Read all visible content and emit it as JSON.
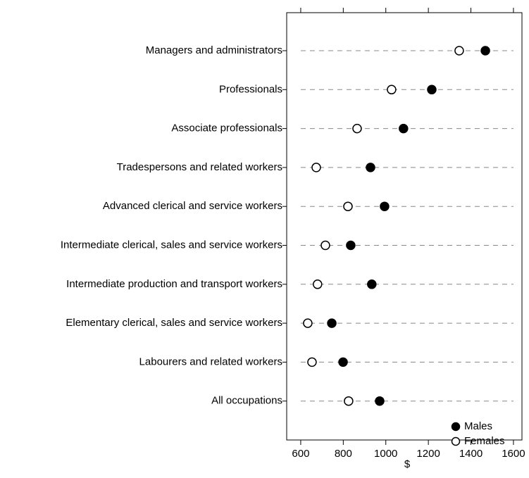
{
  "chart_data": {
    "type": "dot",
    "categories": [
      "Managers and administrators",
      "Professionals",
      "Associate professionals",
      "Tradespersons and related workers",
      "Advanced clerical and service workers",
      "Intermediate clerical, sales and service workers",
      "Intermediate production and transport workers",
      "Elementary clerical, sales and service workers",
      "Labourers and related workers",
      "All occupations"
    ],
    "series": [
      {
        "name": "Males",
        "color": "#000000",
        "values": [
          1468,
          1216,
          1083,
          928,
          994,
          835,
          934,
          746,
          799,
          971
        ]
      },
      {
        "name": "Females",
        "color": "#ffffff",
        "values": [
          1345,
          1027,
          865,
          673,
          822,
          716,
          679,
          633,
          653,
          825
        ]
      }
    ],
    "x_label": "$",
    "xlim": [
      534,
      1640
    ],
    "xticks": [
      600,
      800,
      1000,
      1200,
      1400,
      1600
    ],
    "legend": "bottom-right"
  }
}
